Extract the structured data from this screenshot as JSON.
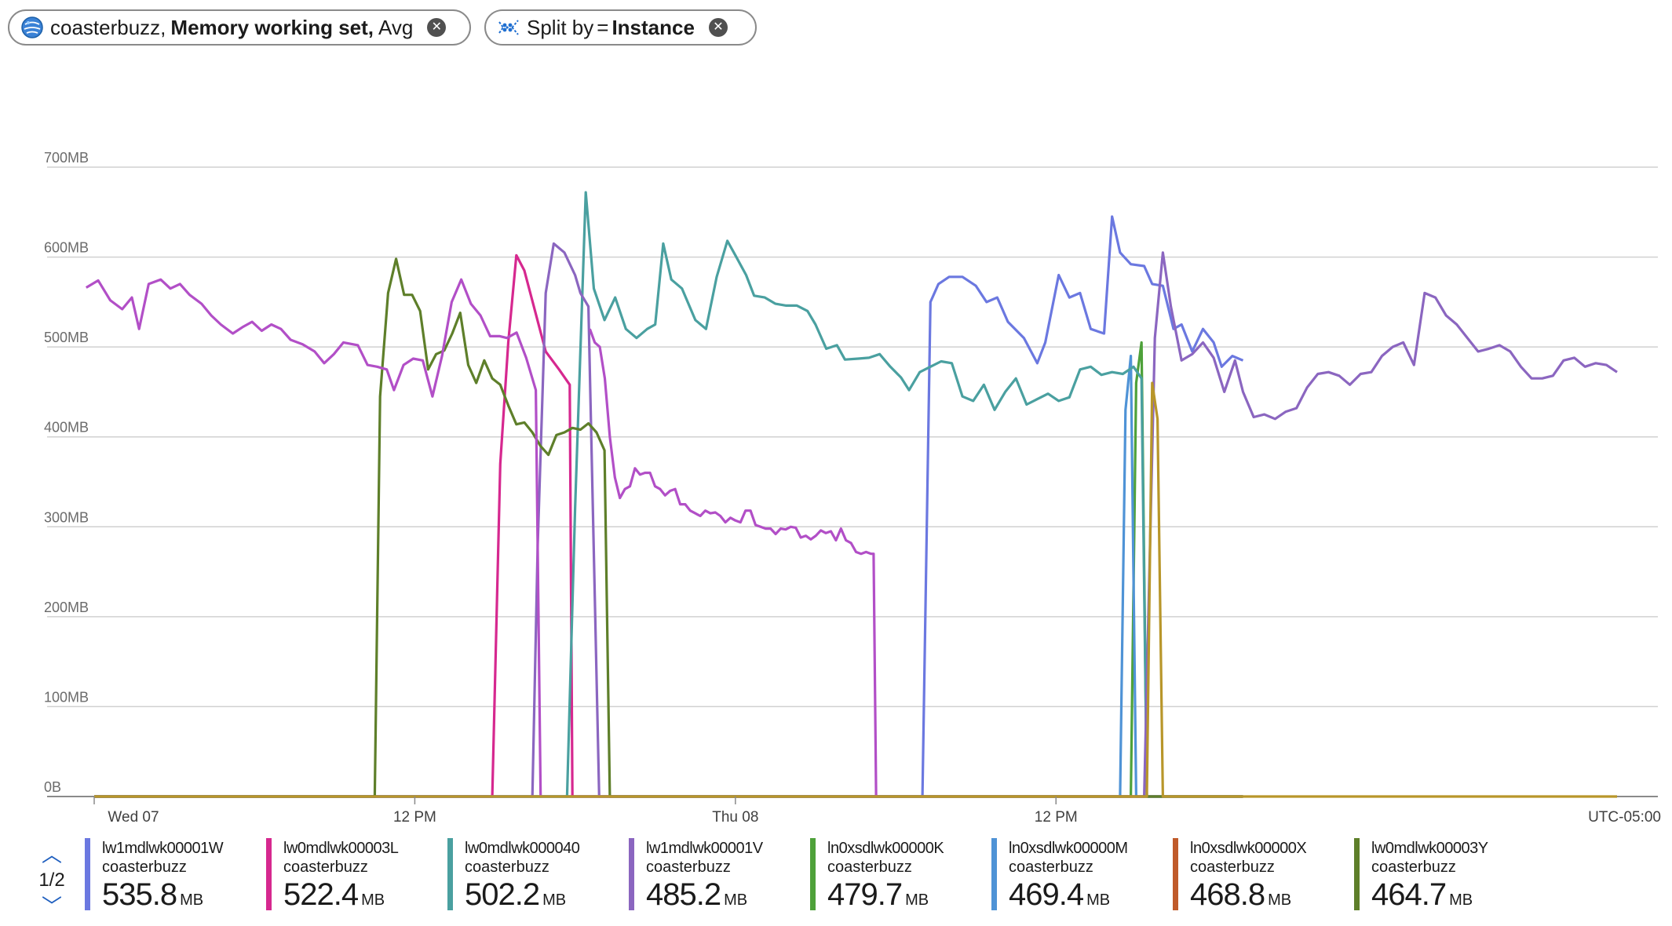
{
  "filters": {
    "metric_pill": {
      "resource": "coasterbuzz,",
      "metric": "Memory working set,",
      "aggregation": "Avg",
      "icon": "app-service-icon"
    },
    "split_pill": {
      "label": "Split by",
      "op": "=",
      "value": "Instance",
      "icon": "split-icon"
    }
  },
  "chart_data": {
    "type": "line",
    "ylim": [
      0,
      700
    ],
    "y_ticks": [
      "0B",
      "100MB",
      "200MB",
      "300MB",
      "400MB",
      "500MB",
      "600MB",
      "700MB"
    ],
    "x_ticks": [
      "Wed 07",
      "12 PM",
      "Thu 08",
      "12 PM"
    ],
    "x_range_hours": [
      -0.5,
      40
    ],
    "timezone": "UTC-05:00",
    "grid": true,
    "series": [
      {
        "name": "lw1mdlwk00001W",
        "color": "#6b78e0",
        "points": [
          [
            0,
            0
          ],
          [
            30.8,
            0
          ],
          [
            31,
            0
          ],
          [
            31.3,
            550
          ],
          [
            31.6,
            570
          ],
          [
            32,
            578
          ],
          [
            32.5,
            578
          ],
          [
            33,
            568
          ],
          [
            33.4,
            550
          ],
          [
            33.8,
            555
          ],
          [
            34.2,
            528
          ],
          [
            34.8,
            510
          ],
          [
            35.3,
            482
          ],
          [
            35.6,
            505
          ],
          [
            36.1,
            580
          ],
          [
            36.5,
            555
          ],
          [
            36.9,
            560
          ],
          [
            37.3,
            520
          ],
          [
            37.8,
            515
          ],
          [
            38.1,
            645
          ],
          [
            38.4,
            605
          ],
          [
            38.8,
            592
          ],
          [
            39.3,
            590
          ],
          [
            39.6,
            570
          ],
          [
            40,
            568
          ],
          [
            40.4,
            520
          ],
          [
            40.7,
            525
          ],
          [
            41.1,
            495
          ],
          [
            41.5,
            520
          ],
          [
            41.9,
            505
          ],
          [
            42.2,
            478
          ],
          [
            42.6,
            490
          ],
          [
            43,
            485
          ]
        ]
      },
      {
        "name": "lw0mdlwk00003L",
        "color": "#d6288f",
        "points": [
          [
            0,
            0
          ],
          [
            14.9,
            0
          ],
          [
            15.2,
            370
          ],
          [
            15.5,
            505
          ],
          [
            15.8,
            602
          ],
          [
            16.1,
            585
          ],
          [
            16.5,
            540
          ],
          [
            16.9,
            495
          ],
          [
            17.4,
            475
          ],
          [
            17.8,
            458
          ],
          [
            17.9,
            0
          ],
          [
            43,
            0
          ]
        ]
      },
      {
        "name": "lw0mdlwk000040",
        "color": "#4aa0a0",
        "points": [
          [
            0,
            0
          ],
          [
            17.7,
            0
          ],
          [
            18,
            320
          ],
          [
            18.4,
            672
          ],
          [
            18.7,
            565
          ],
          [
            19.1,
            530
          ],
          [
            19.5,
            555
          ],
          [
            19.9,
            520
          ],
          [
            20.3,
            510
          ],
          [
            20.7,
            520
          ],
          [
            21,
            525
          ],
          [
            21.3,
            615
          ],
          [
            21.6,
            575
          ],
          [
            22,
            565
          ],
          [
            22.5,
            530
          ],
          [
            22.9,
            520
          ],
          [
            23.3,
            578
          ],
          [
            23.7,
            618
          ],
          [
            24,
            602
          ],
          [
            24.4,
            580
          ],
          [
            24.7,
            557
          ],
          [
            25.1,
            555
          ],
          [
            25.5,
            548
          ],
          [
            25.9,
            546
          ],
          [
            26.3,
            546
          ],
          [
            26.7,
            540
          ],
          [
            27,
            525
          ],
          [
            27.4,
            498
          ],
          [
            27.8,
            502
          ],
          [
            28.1,
            486
          ],
          [
            28.6,
            487
          ],
          [
            29,
            488
          ],
          [
            29.4,
            492
          ],
          [
            29.8,
            478
          ],
          [
            30.2,
            466
          ],
          [
            30.5,
            452
          ],
          [
            30.9,
            472
          ],
          [
            31.3,
            478
          ],
          [
            31.7,
            484
          ],
          [
            32.1,
            482
          ],
          [
            32.5,
            445
          ],
          [
            32.9,
            440
          ],
          [
            33.3,
            458
          ],
          [
            33.7,
            430
          ],
          [
            34.1,
            450
          ],
          [
            34.5,
            465
          ],
          [
            34.9,
            436
          ],
          [
            35.3,
            442
          ],
          [
            35.7,
            448
          ],
          [
            36.1,
            440
          ],
          [
            36.5,
            444
          ],
          [
            36.9,
            475
          ],
          [
            37.3,
            478
          ],
          [
            37.7,
            469
          ],
          [
            38.1,
            472
          ],
          [
            38.5,
            470
          ],
          [
            38.9,
            478
          ],
          [
            39.2,
            465
          ],
          [
            39.4,
            0
          ],
          [
            43,
            0
          ]
        ]
      },
      {
        "name": "lw1mdlwk00001V",
        "color": "#8b66c0",
        "points": [
          [
            0,
            0
          ],
          [
            16.4,
            0
          ],
          [
            16.6,
            280
          ],
          [
            16.9,
            560
          ],
          [
            17.2,
            615
          ],
          [
            17.6,
            605
          ],
          [
            18,
            580
          ],
          [
            18.2,
            560
          ],
          [
            18.5,
            545
          ],
          [
            18.9,
            0
          ],
          [
            38.9,
            0
          ],
          [
            39.3,
            0
          ],
          [
            39.7,
            510
          ],
          [
            40,
            605
          ],
          [
            40.3,
            545
          ],
          [
            40.7,
            485
          ],
          [
            41.1,
            492
          ],
          [
            41.5,
            505
          ],
          [
            41.9,
            488
          ],
          [
            42.3,
            450
          ],
          [
            42.7,
            485
          ],
          [
            43,
            450
          ],
          [
            43.4,
            422
          ],
          [
            43.8,
            425
          ],
          [
            44.2,
            420
          ],
          [
            44.6,
            428
          ],
          [
            45,
            432
          ],
          [
            45.4,
            455
          ],
          [
            45.8,
            470
          ],
          [
            46.2,
            472
          ],
          [
            46.6,
            468
          ],
          [
            47,
            458
          ],
          [
            47.4,
            470
          ],
          [
            47.8,
            472
          ],
          [
            48.2,
            490
          ],
          [
            48.6,
            500
          ],
          [
            49,
            505
          ],
          [
            49.4,
            480
          ],
          [
            49.8,
            560
          ],
          [
            50.2,
            555
          ],
          [
            50.6,
            535
          ],
          [
            51,
            525
          ],
          [
            51.4,
            510
          ],
          [
            51.8,
            495
          ],
          [
            52.2,
            498
          ],
          [
            52.6,
            502
          ],
          [
            53,
            495
          ],
          [
            53.4,
            478
          ],
          [
            53.8,
            465
          ],
          [
            54.2,
            465
          ],
          [
            54.6,
            468
          ],
          [
            55,
            485
          ],
          [
            55.4,
            488
          ],
          [
            55.8,
            478
          ],
          [
            56.2,
            482
          ],
          [
            56.6,
            480
          ],
          [
            57,
            472
          ]
        ]
      },
      {
        "name": "ln0xsdlwk00000K",
        "color": "#4ea13a",
        "points": [
          [
            0,
            0
          ],
          [
            38.8,
            0
          ],
          [
            39,
            460
          ],
          [
            39.2,
            505
          ],
          [
            39.4,
            0
          ],
          [
            43,
            0
          ]
        ]
      },
      {
        "name": "ln0xsdlwk00000M",
        "color": "#4f93d6",
        "points": [
          [
            0,
            0
          ],
          [
            38.4,
            0
          ],
          [
            38.6,
            430
          ],
          [
            38.8,
            490
          ],
          [
            39,
            0
          ],
          [
            43,
            0
          ]
        ]
      },
      {
        "name": "ln0xsdlwk00000X",
        "color": "#c05a2a",
        "points": [
          [
            0,
            0
          ],
          [
            43,
            0
          ]
        ]
      },
      {
        "name": "lw0mdlwk00003Y",
        "color": "#5e7f2a",
        "points": [
          [
            0,
            0
          ],
          [
            10.5,
            0
          ],
          [
            10.7,
            445
          ],
          [
            11,
            560
          ],
          [
            11.3,
            598
          ],
          [
            11.6,
            558
          ],
          [
            11.9,
            558
          ],
          [
            12.2,
            540
          ],
          [
            12.5,
            475
          ],
          [
            12.8,
            492
          ],
          [
            13.1,
            496
          ],
          [
            13.4,
            515
          ],
          [
            13.7,
            538
          ],
          [
            14,
            480
          ],
          [
            14.3,
            460
          ],
          [
            14.6,
            485
          ],
          [
            14.9,
            465
          ],
          [
            15.2,
            458
          ],
          [
            15.5,
            435
          ],
          [
            15.8,
            414
          ],
          [
            16.1,
            416
          ],
          [
            16.4,
            405
          ],
          [
            16.7,
            390
          ],
          [
            17,
            380
          ],
          [
            17.3,
            402
          ],
          [
            17.6,
            405
          ],
          [
            17.9,
            410
          ],
          [
            18.2,
            408
          ],
          [
            18.5,
            415
          ],
          [
            18.8,
            405
          ],
          [
            19.1,
            385
          ],
          [
            19.3,
            0
          ],
          [
            43,
            0
          ]
        ]
      }
    ]
  },
  "legend": {
    "pager": {
      "current": "1/2"
    },
    "items": [
      {
        "name": "lw1mdlwk00001W",
        "sub": "coasterbuzz",
        "value": "535.8",
        "unit": "MB",
        "color": "#6b78e0"
      },
      {
        "name": "lw0mdlwk00003L",
        "sub": "coasterbuzz",
        "value": "522.4",
        "unit": "MB",
        "color": "#d6288f"
      },
      {
        "name": "lw0mdlwk000040",
        "sub": "coasterbuzz",
        "value": "502.2",
        "unit": "MB",
        "color": "#4aa0a0"
      },
      {
        "name": "lw1mdlwk00001V",
        "sub": "coasterbuzz",
        "value": "485.2",
        "unit": "MB",
        "color": "#8b66c0"
      },
      {
        "name": "ln0xsdlwk00000K",
        "sub": "coasterbuzz",
        "value": "479.7",
        "unit": "MB",
        "color": "#4ea13a"
      },
      {
        "name": "ln0xsdlwk00000M",
        "sub": "coasterbuzz",
        "value": "469.4",
        "unit": "MB",
        "color": "#4f93d6"
      },
      {
        "name": "ln0xsdlwk00000X",
        "sub": "coasterbuzz",
        "value": "468.8",
        "unit": "MB",
        "color": "#c05a2a"
      },
      {
        "name": "lw0mdlwk00003Y",
        "sub": "coasterbuzz",
        "value": "464.7",
        "unit": "MB",
        "color": "#5e7f2a"
      }
    ]
  }
}
